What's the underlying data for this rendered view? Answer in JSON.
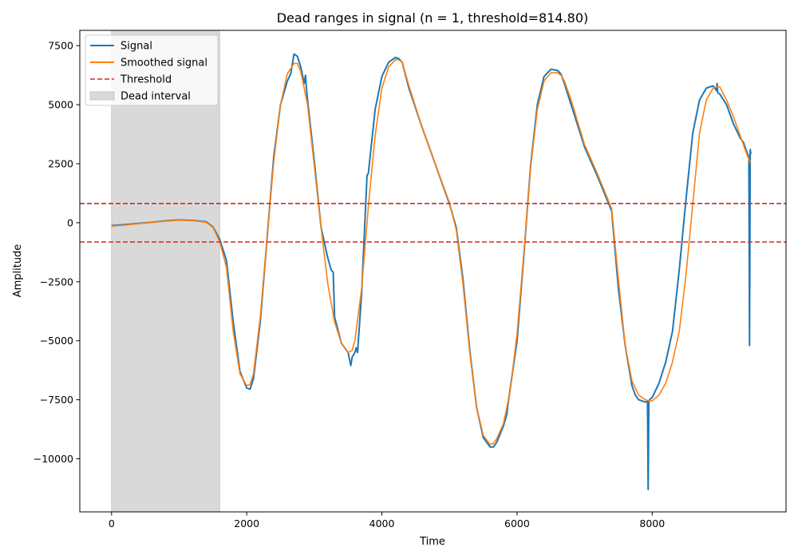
{
  "chart_data": {
    "type": "line",
    "title": "Dead ranges in signal (n = 1, threshold=814.80)",
    "xlabel": "Time",
    "ylabel": "Amplitude",
    "xlim": [
      -470,
      9980
    ],
    "ylim": [
      -12250,
      8150
    ],
    "xticks": [
      0,
      2000,
      4000,
      6000,
      8000
    ],
    "yticks": [
      -10000,
      -7500,
      -5000,
      -2500,
      0,
      2500,
      5000,
      7500
    ],
    "xtick_labels": [
      "0",
      "2000",
      "4000",
      "6000",
      "8000"
    ],
    "ytick_labels": [
      "−10000",
      "−7500",
      "−5000",
      "−2500",
      "0",
      "2500",
      "5000",
      "7500"
    ],
    "grid": false,
    "legend_position": "top-left",
    "threshold": 814.8,
    "dead_intervals": [
      [
        0,
        1600
      ]
    ],
    "series": [
      {
        "name": "Signal",
        "color": "#1f77b4",
        "style": "solid",
        "x": [
          0,
          200,
          400,
          600,
          800,
          1000,
          1200,
          1400,
          1500,
          1600,
          1700,
          1800,
          1900,
          2000,
          2050,
          2100,
          2200,
          2300,
          2400,
          2500,
          2600,
          2650,
          2700,
          2750,
          2800,
          2850,
          2870,
          2880,
          2900,
          3000,
          3100,
          3200,
          3250,
          3280,
          3300,
          3400,
          3500,
          3540,
          3560,
          3600,
          3620,
          3640,
          3700,
          3780,
          3800,
          3900,
          4000,
          4100,
          4200,
          4250,
          4300,
          4400,
          4600,
          4800,
          5000,
          5100,
          5200,
          5300,
          5400,
          5500,
          5600,
          5650,
          5700,
          5800,
          5850,
          5860,
          5900,
          6000,
          6100,
          6200,
          6300,
          6400,
          6500,
          6600,
          6650,
          6700,
          6800,
          7000,
          7200,
          7400,
          7500,
          7600,
          7700,
          7750,
          7800,
          7850,
          7900,
          7930,
          7940,
          7950,
          7960,
          8000,
          8100,
          8200,
          8300,
          8400,
          8500,
          8600,
          8700,
          8800,
          8900,
          8950,
          8960,
          8970,
          9000,
          9100,
          9150,
          9200,
          9250,
          9300,
          9350,
          9400,
          9430,
          9440,
          9450,
          9460
        ],
        "y": [
          -120,
          -80,
          -30,
          20,
          80,
          120,
          100,
          40,
          -180,
          -700,
          -1600,
          -4200,
          -6300,
          -7000,
          -7050,
          -6600,
          -4200,
          -700,
          2800,
          5000,
          6000,
          6300,
          7150,
          7050,
          6600,
          5900,
          6250,
          5800,
          5200,
          2600,
          -200,
          -1500,
          -2000,
          -2100,
          -4000,
          -5100,
          -5500,
          -6050,
          -5700,
          -5500,
          -5300,
          -5500,
          -3000,
          2000,
          2100,
          4800,
          6200,
          6800,
          7000,
          6950,
          6800,
          5700,
          4000,
          2400,
          800,
          -200,
          -2400,
          -5400,
          -7800,
          -9100,
          -9500,
          -9500,
          -9300,
          -8600,
          -8100,
          -7800,
          -7000,
          -5000,
          -1400,
          2400,
          5000,
          6200,
          6500,
          6450,
          6300,
          5900,
          5000,
          3200,
          1900,
          500,
          -2800,
          -5200,
          -6900,
          -7300,
          -7500,
          -7550,
          -7600,
          -7550,
          -11300,
          -7600,
          -7500,
          -7400,
          -6800,
          -5900,
          -4600,
          -2000,
          1000,
          3800,
          5200,
          5700,
          5800,
          5600,
          5900,
          5500,
          5450,
          5000,
          4600,
          4200,
          3900,
          3600,
          3400,
          3000,
          2800,
          -5200,
          3100,
          2900
        ]
      },
      {
        "name": "Smoothed signal",
        "color": "#ff7f0e",
        "style": "solid",
        "x": [
          0,
          200,
          400,
          600,
          800,
          1000,
          1200,
          1400,
          1500,
          1600,
          1700,
          1800,
          1900,
          2000,
          2050,
          2100,
          2200,
          2300,
          2400,
          2500,
          2600,
          2700,
          2750,
          2800,
          2900,
          3000,
          3100,
          3200,
          3300,
          3400,
          3500,
          3560,
          3600,
          3700,
          3800,
          3900,
          4000,
          4100,
          4200,
          4250,
          4300,
          4400,
          4600,
          4800,
          5000,
          5100,
          5200,
          5300,
          5400,
          5500,
          5600,
          5650,
          5700,
          5800,
          5900,
          6000,
          6100,
          6200,
          6300,
          6400,
          6500,
          6600,
          6650,
          6700,
          6800,
          7000,
          7200,
          7400,
          7500,
          7600,
          7700,
          7800,
          7900,
          7950,
          8000,
          8100,
          8200,
          8300,
          8400,
          8500,
          8600,
          8700,
          8800,
          8900,
          8950,
          9000,
          9100,
          9200,
          9300,
          9400,
          9460
        ],
        "y": [
          -150,
          -100,
          -40,
          10,
          70,
          110,
          90,
          20,
          -200,
          -800,
          -1900,
          -4600,
          -6400,
          -6900,
          -6850,
          -6400,
          -4000,
          -700,
          2600,
          5000,
          6300,
          6750,
          6750,
          6400,
          5000,
          2400,
          -200,
          -2600,
          -4200,
          -5100,
          -5500,
          -5400,
          -5000,
          -2800,
          700,
          3700,
          5700,
          6600,
          6900,
          6900,
          6800,
          5800,
          4000,
          2400,
          850,
          -300,
          -2600,
          -5500,
          -7800,
          -9000,
          -9400,
          -9350,
          -9150,
          -8500,
          -7100,
          -4700,
          -1300,
          2300,
          4800,
          6000,
          6350,
          6350,
          6250,
          6000,
          5200,
          3300,
          2000,
          600,
          -2400,
          -5200,
          -6700,
          -7300,
          -7500,
          -7550,
          -7550,
          -7300,
          -6800,
          -5900,
          -4600,
          -2200,
          800,
          3800,
          5200,
          5700,
          5750,
          5750,
          5200,
          4500,
          3700,
          2900,
          2500
        ]
      },
      {
        "name": "Threshold",
        "color": "#d62728",
        "style": "dashed"
      },
      {
        "name": "Dead interval",
        "color": "#d9d9d9",
        "style": "fill"
      }
    ]
  }
}
